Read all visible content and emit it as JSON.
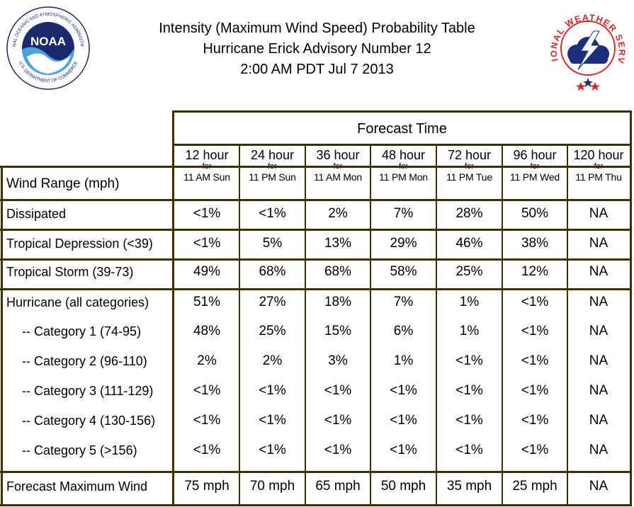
{
  "header": {
    "title_line1": "Intensity (Maximum Wind Speed) Probability Table",
    "title_line2": "Hurricane Erick Advisory Number 12",
    "title_line3": "2:00 AM PDT Jul 7 2013"
  },
  "noaa_logo": {
    "icon": "noaa-logo",
    "text": "NOAA",
    "ring_text": "NATIONAL OCEANIC AND ATMOSPHERIC ADMINISTRATION",
    "ring_text_bottom": "U.S. DEPARTMENT OF COMMERCE",
    "colors": {
      "dark": "#1a2a6c",
      "light": "#4aa3df"
    }
  },
  "nws_logo": {
    "icon": "nws-logo",
    "ring_text": "NATIONAL WEATHER SERVICE",
    "colors": {
      "red": "#d42a2a",
      "blue": "#1d2f7a"
    }
  },
  "table": {
    "forecast_time_label": "Forecast Time",
    "wind_range_label": "Wind Range (mph)",
    "for_label": "for",
    "columns": [
      {
        "hour": "12 hour",
        "when": "11 AM Sun"
      },
      {
        "hour": "24 hour",
        "when": "11 PM Sun"
      },
      {
        "hour": "36 hour",
        "when": "11 AM Mon"
      },
      {
        "hour": "48 hour",
        "when": "11 PM Mon"
      },
      {
        "hour": "72 hour",
        "when": "11 PM Tue"
      },
      {
        "hour": "96 hour",
        "when": "11 PM Wed"
      },
      {
        "hour": "120 hour",
        "when": "11 PM Thu"
      }
    ],
    "rows": [
      {
        "label": "Dissipated",
        "values": [
          "<1%",
          "<1%",
          "2%",
          "7%",
          "28%",
          "50%",
          "NA"
        ]
      },
      {
        "label": "Tropical Depression (<39)",
        "values": [
          "<1%",
          "5%",
          "13%",
          "29%",
          "46%",
          "38%",
          "NA"
        ]
      },
      {
        "label": "Tropical Storm (39-73)",
        "values": [
          "49%",
          "68%",
          "68%",
          "58%",
          "25%",
          "12%",
          "NA"
        ]
      },
      {
        "label": "Hurricane (all categories)",
        "values": [
          "51%",
          "27%",
          "18%",
          "7%",
          "1%",
          "<1%",
          "NA"
        ]
      },
      {
        "label": "-- Category 1 (74-95)",
        "values": [
          "48%",
          "25%",
          "15%",
          "6%",
          "1%",
          "<1%",
          "NA"
        ]
      },
      {
        "label": "-- Category 2 (96-110)",
        "values": [
          "2%",
          "2%",
          "3%",
          "1%",
          "<1%",
          "<1%",
          "NA"
        ]
      },
      {
        "label": "-- Category 3 (111-129)",
        "values": [
          "<1%",
          "<1%",
          "<1%",
          "<1%",
          "<1%",
          "<1%",
          "NA"
        ]
      },
      {
        "label": "-- Category 4 (130-156)",
        "values": [
          "<1%",
          "<1%",
          "<1%",
          "<1%",
          "<1%",
          "<1%",
          "NA"
        ]
      },
      {
        "label": "-- Category 5 (>156)",
        "values": [
          "<1%",
          "<1%",
          "<1%",
          "<1%",
          "<1%",
          "<1%",
          "NA"
        ]
      }
    ],
    "max_wind": {
      "label": "Forecast Maximum Wind",
      "values": [
        "75 mph",
        "70 mph",
        "65 mph",
        "50 mph",
        "35 mph",
        "25 mph",
        "NA"
      ]
    }
  }
}
